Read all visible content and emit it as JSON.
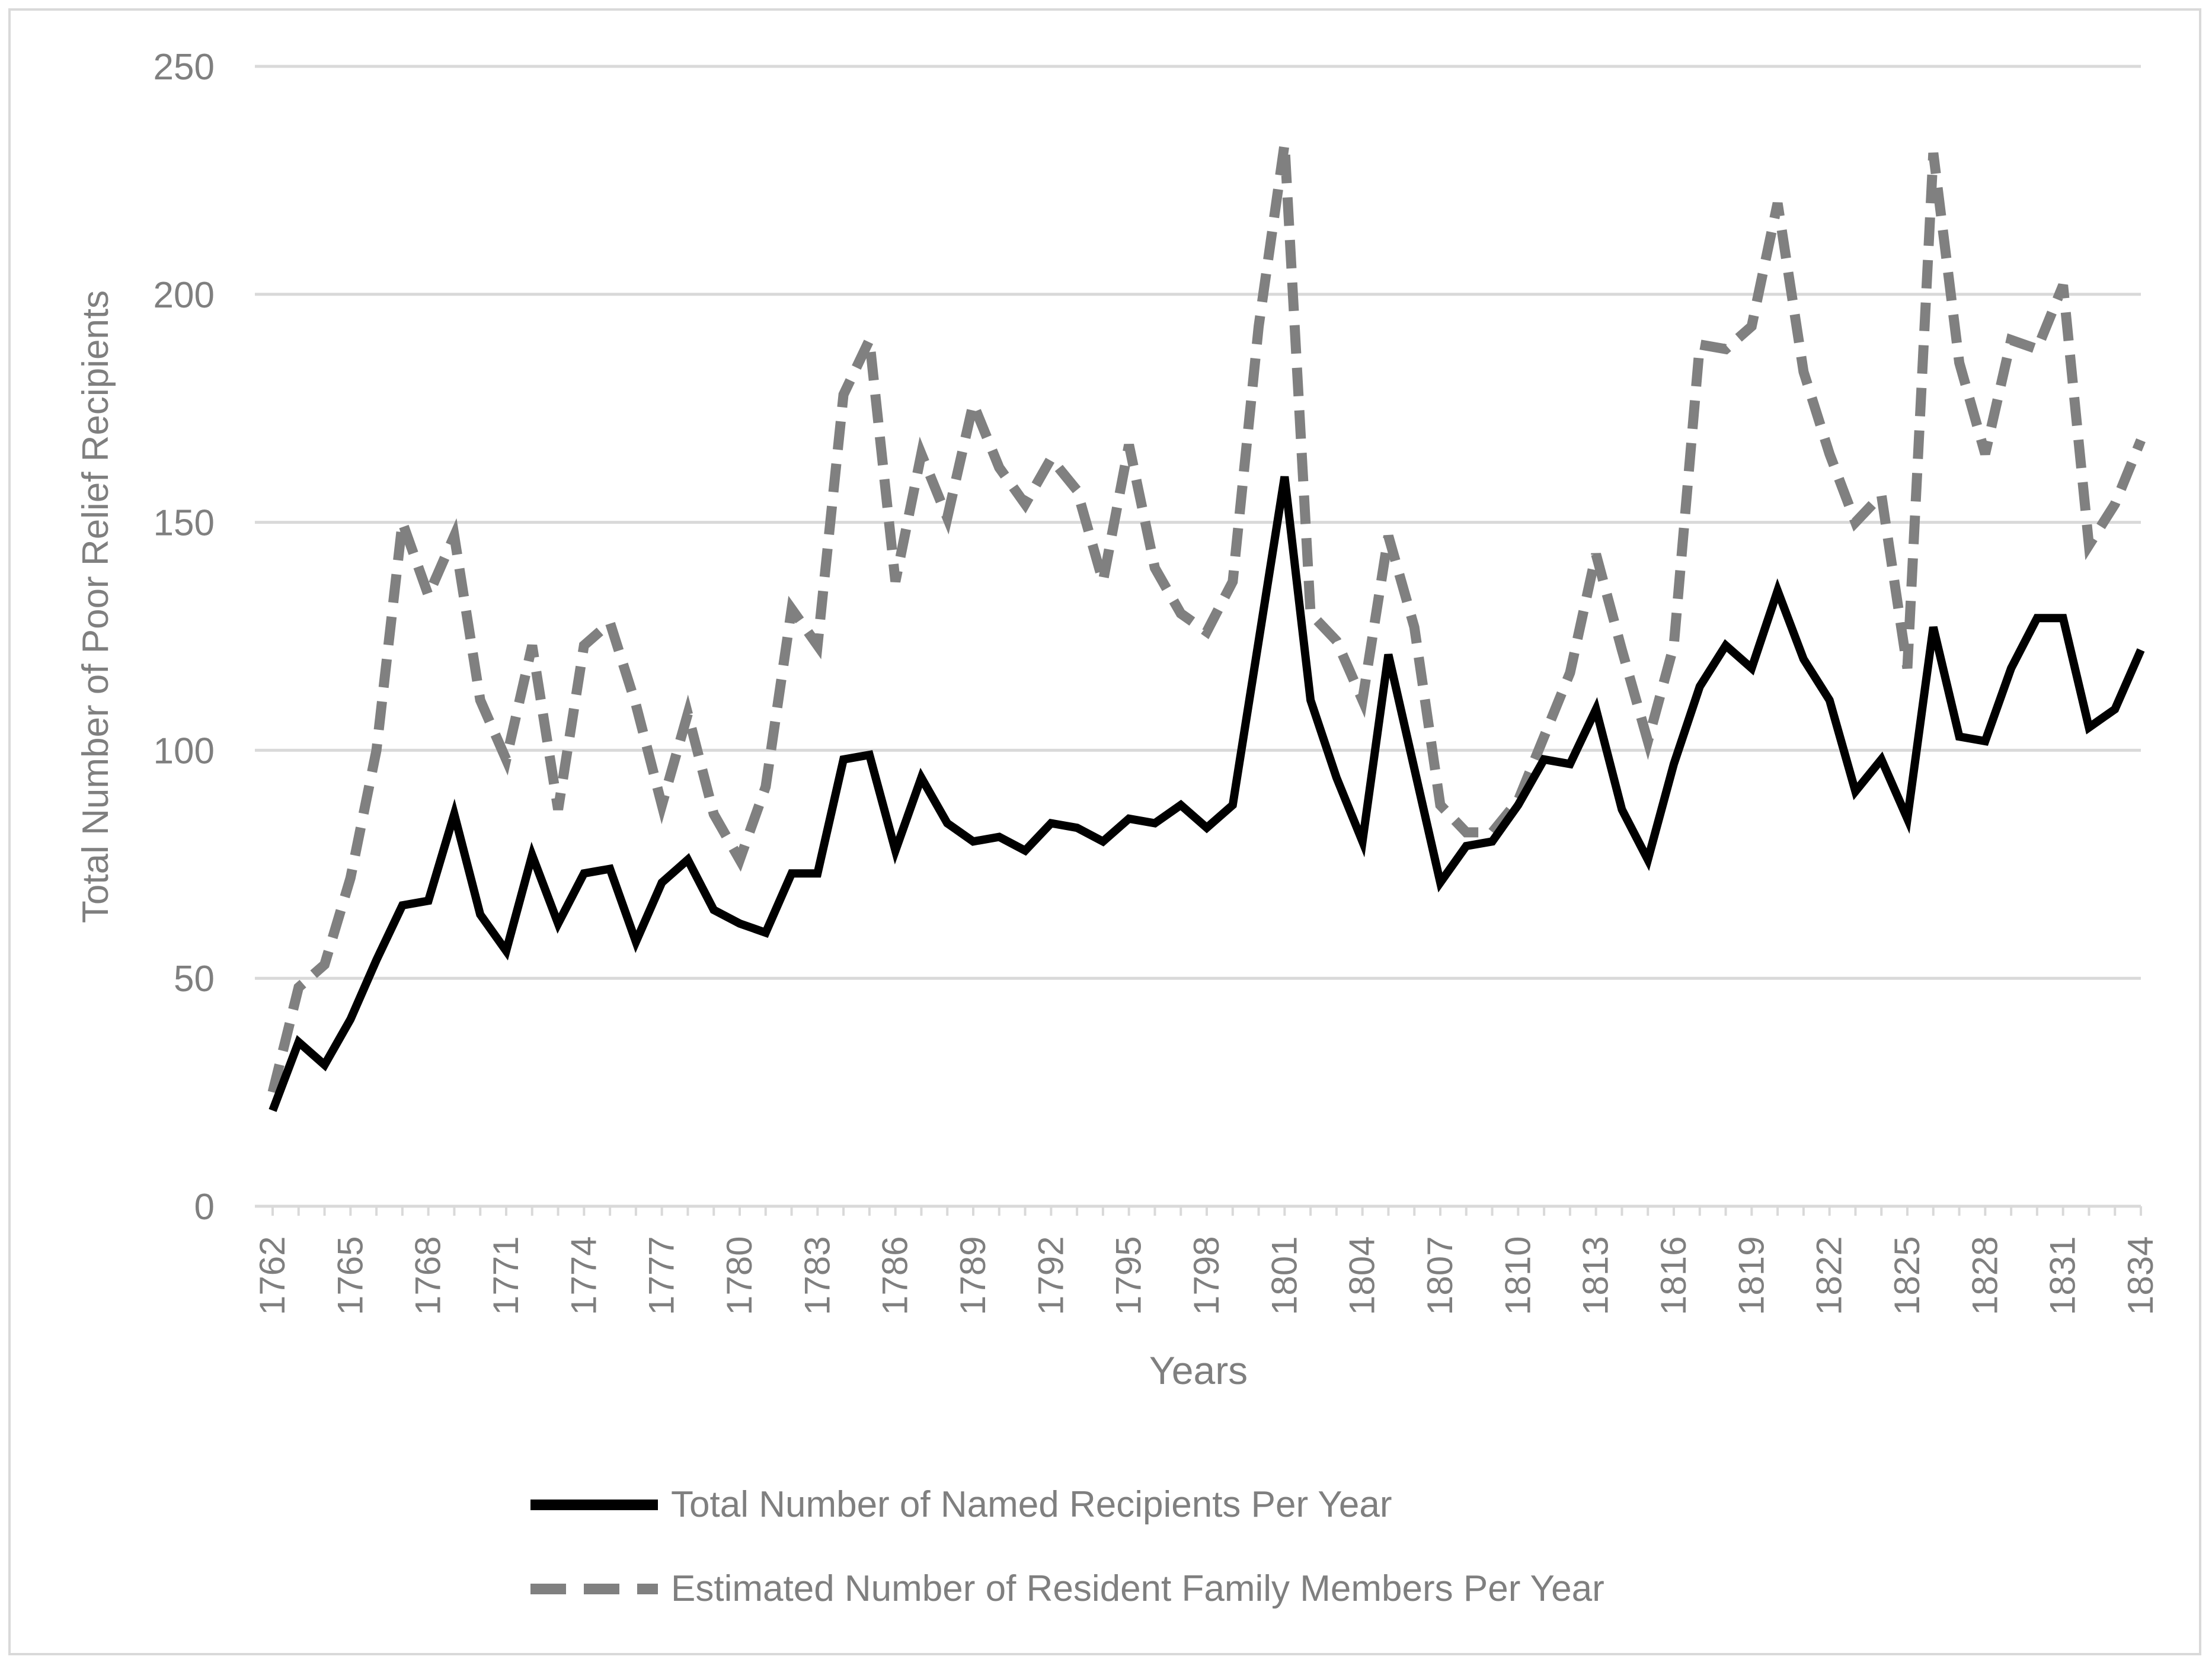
{
  "chart_data": {
    "type": "line",
    "title": "",
    "xlabel": "Years",
    "ylabel": "Total Number of Poor Relief Recipients",
    "ylim": [
      0,
      250
    ],
    "yticks": [
      0,
      50,
      100,
      150,
      200,
      250
    ],
    "grid": true,
    "legend_position": "bottom",
    "x": [
      1762,
      1763,
      1764,
      1765,
      1766,
      1767,
      1768,
      1769,
      1770,
      1771,
      1772,
      1773,
      1774,
      1775,
      1776,
      1777,
      1778,
      1779,
      1780,
      1781,
      1782,
      1783,
      1784,
      1785,
      1786,
      1787,
      1788,
      1789,
      1790,
      1791,
      1792,
      1793,
      1794,
      1795,
      1796,
      1797,
      1798,
      1799,
      1800,
      1801,
      1802,
      1803,
      1804,
      1805,
      1806,
      1807,
      1808,
      1809,
      1810,
      1811,
      1812,
      1813,
      1814,
      1815,
      1816,
      1817,
      1818,
      1819,
      1820,
      1821,
      1822,
      1823,
      1824,
      1825,
      1826,
      1827,
      1828,
      1829,
      1830,
      1831,
      1832,
      1833,
      1834
    ],
    "xtick_labels": [
      "1762",
      "1765",
      "1768",
      "1771",
      "1774",
      "1777",
      "1780",
      "1783",
      "1786",
      "1789",
      "1792",
      "1795",
      "1798",
      "1801",
      "1804",
      "1807",
      "1810",
      "1813",
      "1816",
      "1819",
      "1822",
      "1825",
      "1828",
      "1831",
      "1834"
    ],
    "series": [
      {
        "name": "Total Number of Named Recipients Per Year",
        "color": "#000000",
        "style": "solid",
        "values": [
          21,
          36,
          31,
          41,
          54,
          66,
          67,
          86,
          64,
          56,
          77,
          62,
          73,
          74,
          58,
          71,
          76,
          65,
          62,
          60,
          73,
          73,
          98,
          99,
          78,
          94,
          84,
          80,
          81,
          78,
          84,
          83,
          80,
          85,
          84,
          88,
          83,
          88,
          124,
          160,
          111,
          94,
          80,
          121,
          96,
          71,
          79,
          80,
          88,
          98,
          97,
          109,
          87,
          76,
          97,
          114,
          123,
          118,
          135,
          120,
          111,
          91,
          98,
          85,
          127,
          103,
          102,
          118,
          129,
          129,
          105,
          109,
          122
        ]
      },
      {
        "name": "Estimated Number of Resident Family Members Per Year",
        "color": "#808080",
        "style": "dashed",
        "values": [
          25,
          48,
          53,
          72,
          100,
          150,
          134,
          147,
          111,
          98,
          123,
          87,
          123,
          128,
          110,
          88,
          108,
          86,
          76,
          92,
          131,
          123,
          178,
          190,
          137,
          165,
          151,
          176,
          162,
          154,
          164,
          157,
          137,
          167,
          140,
          130,
          126,
          137,
          193,
          233,
          130,
          124,
          111,
          147,
          127,
          88,
          82,
          82,
          89,
          103,
          117,
          143,
          122,
          102,
          123,
          189,
          188,
          193,
          220,
          183,
          165,
          150,
          156,
          118,
          231,
          185,
          165,
          190,
          188,
          202,
          145,
          154,
          168
        ]
      }
    ]
  }
}
